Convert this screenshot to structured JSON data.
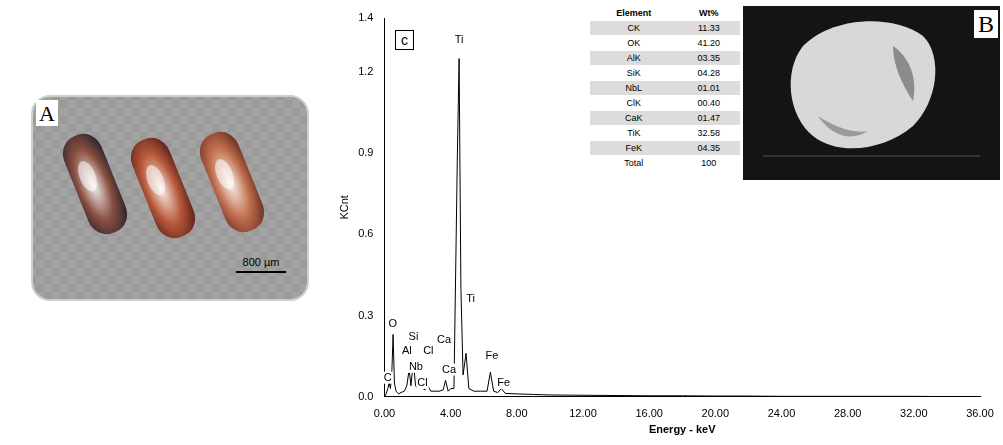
{
  "panel_a": {
    "letter": "A",
    "scale_bar": "800 µm"
  },
  "panel_b": {
    "letter": "B",
    "table": {
      "header": [
        "Element",
        "Wt%"
      ],
      "rows": [
        [
          "CK",
          "11.33"
        ],
        [
          "OK",
          "41.20"
        ],
        [
          "AlK",
          "03.35"
        ],
        [
          "SiK",
          "04.28"
        ],
        [
          "NbL",
          "01.01"
        ],
        [
          "ClK",
          "00.40"
        ],
        [
          "CaK",
          "01.47"
        ],
        [
          "TiK",
          "32.58"
        ],
        [
          "FeK",
          "04.35"
        ],
        [
          "Total",
          "100"
        ]
      ]
    }
  },
  "chart_data": {
    "letter": "c",
    "type": "line",
    "x_label": "Energy - keV",
    "y_label": "KCnt",
    "color": "#000000",
    "grid": false,
    "x": [
      0,
      0.1,
      0.2,
      0.28,
      0.36,
      0.45,
      0.52,
      0.6,
      0.7,
      0.85,
      1.0,
      1.2,
      1.35,
      1.49,
      1.6,
      1.74,
      1.88,
      2.0,
      2.17,
      2.3,
      2.45,
      2.62,
      2.8,
      3.0,
      3.3,
      3.55,
      3.69,
      3.85,
      4.01,
      4.2,
      4.4,
      4.51,
      4.62,
      4.75,
      4.93,
      5.1,
      5.4,
      5.8,
      6.2,
      6.4,
      6.6,
      6.85,
      7.06,
      7.3,
      8,
      9,
      10,
      12,
      14,
      16,
      18,
      20,
      22,
      24,
      26,
      28,
      30,
      32,
      34,
      36
    ],
    "values": [
      0,
      0.01,
      0.03,
      0.05,
      0.03,
      0.1,
      0.23,
      0.05,
      0.02,
      0.01,
      0.015,
      0.02,
      0.04,
      0.1,
      0.04,
      0.13,
      0.04,
      0.03,
      0.06,
      0.03,
      0.025,
      0.04,
      0.02,
      0.02,
      0.02,
      0.025,
      0.06,
      0.02,
      0.03,
      0.03,
      0.87,
      1.25,
      0.4,
      0.08,
      0.16,
      0.03,
      0.02,
      0.02,
      0.02,
      0.09,
      0.02,
      0.015,
      0.03,
      0.012,
      0.01,
      0.008,
      0.006,
      0.005,
      0.004,
      0.003,
      0.003,
      0.002,
      0.002,
      0.001,
      0.001,
      0.001,
      0.001,
      0.001,
      0,
      0
    ],
    "xlim": [
      0,
      36
    ],
    "xticks": [
      {
        "value": 0,
        "label": "0.00"
      },
      {
        "value": 4,
        "label": "4.00"
      },
      {
        "value": 8,
        "label": "8.00"
      },
      {
        "value": 12,
        "label": "12.00"
      },
      {
        "value": 16,
        "label": "16.00"
      },
      {
        "value": 20,
        "label": "20.00"
      },
      {
        "value": 24,
        "label": "24.00"
      },
      {
        "value": 28,
        "label": "28.00"
      },
      {
        "value": 32,
        "label": "32.00"
      },
      {
        "value": 36,
        "label": "36.00"
      }
    ],
    "ylim": [
      0,
      1.4
    ],
    "yticks": [
      {
        "value": 0,
        "label": "0.0"
      },
      0.3,
      0.6,
      0.9,
      1.2,
      1.4
    ],
    "annotations": [
      {
        "text": "C",
        "x": 0.2,
        "y": 0.07
      },
      {
        "text": "O",
        "x": 0.5,
        "y": 0.27
      },
      {
        "text": "Al",
        "x": 1.35,
        "y": 0.17
      },
      {
        "text": "Si",
        "x": 1.75,
        "y": 0.22
      },
      {
        "text": "Nb",
        "x": 1.9,
        "y": 0.11
      },
      {
        "text": "Cl",
        "x": 2.65,
        "y": 0.17
      },
      {
        "text": "Cl",
        "x": 2.3,
        "y": 0.05
      },
      {
        "text": "Ca",
        "x": 3.6,
        "y": 0.21
      },
      {
        "text": "Ca",
        "x": 3.9,
        "y": 0.1
      },
      {
        "text": "Ti",
        "x": 4.51,
        "y": 1.32
      },
      {
        "text": "Ti",
        "x": 5.2,
        "y": 0.36
      },
      {
        "text": "Fe",
        "x": 6.5,
        "y": 0.15
      },
      {
        "text": "Fe",
        "x": 7.2,
        "y": 0.05
      }
    ]
  }
}
